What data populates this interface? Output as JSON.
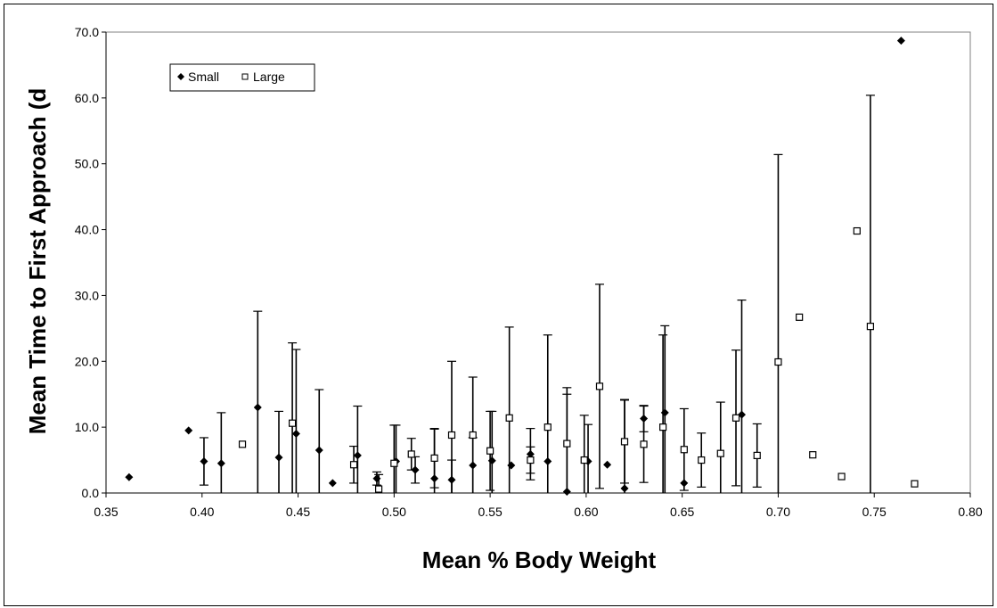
{
  "chart_data": {
    "type": "scatter",
    "xlabel": "Mean % Body Weight",
    "ylabel": "Mean Time to First Approach (d",
    "xlim": [
      0.35,
      0.8
    ],
    "ylim": [
      0,
      70
    ],
    "x_ticks": [
      "0.35",
      "0.40",
      "0.45",
      "0.50",
      "0.55",
      "0.60",
      "0.65",
      "0.70",
      "0.75",
      "0.80"
    ],
    "y_ticks": [
      "0.0",
      "10.0",
      "20.0",
      "30.0",
      "40.0",
      "50.0",
      "60.0",
      "70.0"
    ],
    "grid": false,
    "legend_position": "top-left",
    "series": [
      {
        "name": "Small",
        "marker": "diamond",
        "color": "#000000",
        "points": [
          {
            "x": 0.362,
            "y": 2.4,
            "err": 0
          },
          {
            "x": 0.393,
            "y": 9.5,
            "err": 0
          },
          {
            "x": 0.401,
            "y": 4.8,
            "err": 3.6
          },
          {
            "x": 0.41,
            "y": 4.5,
            "err": 7.7
          },
          {
            "x": 0.429,
            "y": 13.0,
            "err": 14.6
          },
          {
            "x": 0.44,
            "y": 5.4,
            "err": 7.0
          },
          {
            "x": 0.449,
            "y": 9.0,
            "err": 12.8
          },
          {
            "x": 0.461,
            "y": 6.5,
            "err": 9.2
          },
          {
            "x": 0.468,
            "y": 1.5,
            "err": 0
          },
          {
            "x": 0.481,
            "y": 5.7,
            "err": 7.5
          },
          {
            "x": 0.491,
            "y": 2.2,
            "err": 1.0
          },
          {
            "x": 0.501,
            "y": 4.8,
            "err": 5.5
          },
          {
            "x": 0.511,
            "y": 3.5,
            "err": 2.0
          },
          {
            "x": 0.521,
            "y": 2.2,
            "err": 7.5
          },
          {
            "x": 0.53,
            "y": 2.0,
            "err": 3.0
          },
          {
            "x": 0.541,
            "y": 4.2,
            "err": 4.2
          },
          {
            "x": 0.551,
            "y": 4.9,
            "err": 7.5
          },
          {
            "x": 0.561,
            "y": 4.2,
            "err": 0
          },
          {
            "x": 0.571,
            "y": 5.9,
            "err": 3.9
          },
          {
            "x": 0.58,
            "y": 4.8,
            "err": 0
          },
          {
            "x": 0.59,
            "y": 0.2,
            "err": 15.8
          },
          {
            "x": 0.601,
            "y": 4.8,
            "err": 5.6
          },
          {
            "x": 0.611,
            "y": 4.3,
            "err": 0
          },
          {
            "x": 0.62,
            "y": 0.7,
            "err": 13.5
          },
          {
            "x": 0.63,
            "y": 11.3,
            "err": 2.0
          },
          {
            "x": 0.641,
            "y": 12.2,
            "err": 13.2
          },
          {
            "x": 0.651,
            "y": 1.5,
            "err": 0
          },
          {
            "x": 0.681,
            "y": 11.9,
            "err": 17.4
          },
          {
            "x": 0.764,
            "y": 68.7,
            "err": 0
          }
        ]
      },
      {
        "name": "Large",
        "marker": "square",
        "color": "#000000",
        "points": [
          {
            "x": 0.421,
            "y": 7.4,
            "err": 0
          },
          {
            "x": 0.447,
            "y": 10.6,
            "err": 12.2
          },
          {
            "x": 0.479,
            "y": 4.3,
            "err": 2.8
          },
          {
            "x": 0.492,
            "y": 0.6,
            "err": 2.2
          },
          {
            "x": 0.5,
            "y": 4.5,
            "err": 5.8
          },
          {
            "x": 0.509,
            "y": 5.9,
            "err": 2.4
          },
          {
            "x": 0.521,
            "y": 5.3,
            "err": 4.5
          },
          {
            "x": 0.53,
            "y": 8.8,
            "err": 11.2
          },
          {
            "x": 0.541,
            "y": 8.8,
            "err": 8.8
          },
          {
            "x": 0.55,
            "y": 6.4,
            "err": 6.0
          },
          {
            "x": 0.56,
            "y": 11.4,
            "err": 13.8
          },
          {
            "x": 0.571,
            "y": 5.0,
            "err": 2.0
          },
          {
            "x": 0.58,
            "y": 10.0,
            "err": 14.0
          },
          {
            "x": 0.59,
            "y": 7.5,
            "err": 7.5
          },
          {
            "x": 0.599,
            "y": 5.0,
            "err": 6.8
          },
          {
            "x": 0.607,
            "y": 16.2,
            "err": 15.5
          },
          {
            "x": 0.62,
            "y": 7.8,
            "err": 6.3
          },
          {
            "x": 0.63,
            "y": 7.4,
            "err": 5.8
          },
          {
            "x": 0.64,
            "y": 10.0,
            "err": 14.0
          },
          {
            "x": 0.651,
            "y": 6.6,
            "err": 6.2
          },
          {
            "x": 0.66,
            "y": 5.0,
            "err": 4.1
          },
          {
            "x": 0.67,
            "y": 6.0,
            "err": 7.8
          },
          {
            "x": 0.678,
            "y": 11.4,
            "err": 10.3
          },
          {
            "x": 0.689,
            "y": 5.7,
            "err": 4.8
          },
          {
            "x": 0.7,
            "y": 19.9,
            "err": 31.5
          },
          {
            "x": 0.711,
            "y": 26.7,
            "err": 0
          },
          {
            "x": 0.718,
            "y": 5.8,
            "err": 0
          },
          {
            "x": 0.733,
            "y": 2.5,
            "err": 0
          },
          {
            "x": 0.741,
            "y": 39.8,
            "err": 0
          },
          {
            "x": 0.748,
            "y": 25.3,
            "err": 35.1
          },
          {
            "x": 0.771,
            "y": 1.4,
            "err": 0
          }
        ]
      }
    ]
  }
}
